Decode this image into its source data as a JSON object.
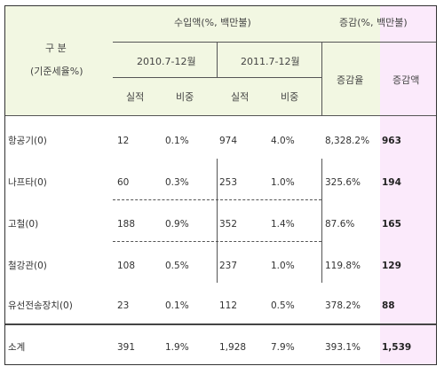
{
  "header": {
    "group_label": "구 분",
    "group_sub": "(기준세율%)",
    "import_title": "수입액(%, 백만불)",
    "change_title": "증감(%, 백만불)",
    "period_2010": "2010.7-12월",
    "period_2011": "2011.7-12월",
    "actual": "실적",
    "share": "비중",
    "change_rate": "증감율",
    "change_amount": "증감액"
  },
  "rows": [
    {
      "name": "항공기(0)",
      "v2010": "12",
      "s2010": "0.1%",
      "v2011": "974",
      "s2011": "4.0%",
      "rate": "8,328.2%",
      "amount": "963"
    },
    {
      "name": "나프타(0)",
      "v2010": "60",
      "s2010": "0.3%",
      "v2011": "253",
      "s2011": "1.0%",
      "rate": "325.6%",
      "amount": "194"
    },
    {
      "name": "고철(0)",
      "v2010": "188",
      "s2010": "0.9%",
      "v2011": "352",
      "s2011": "1.4%",
      "rate": "87.6%",
      "amount": "165"
    },
    {
      "name": "철강관(0)",
      "v2010": "108",
      "s2010": "0.5%",
      "v2011": "237",
      "s2011": "1.0%",
      "rate": "119.8%",
      "amount": "129"
    },
    {
      "name": "유선전송장치(0)",
      "v2010": "23",
      "s2010": "0.1%",
      "v2011": "112",
      "s2011": "0.5%",
      "rate": "378.2%",
      "amount": "88"
    }
  ],
  "total": {
    "name": "소계",
    "v2010": "391",
    "s2010": "1.9%",
    "v2011": "1,928",
    "s2011": "7.9%",
    "rate": "393.1%",
    "amount": "1,539"
  }
}
